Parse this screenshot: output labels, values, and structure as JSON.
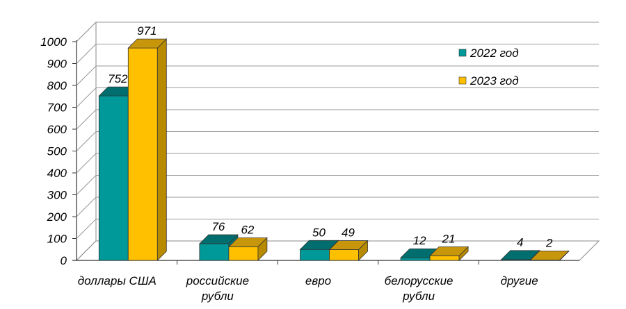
{
  "chart_data": {
    "type": "bar",
    "title": "",
    "xlabel": "",
    "ylabel": "",
    "ylim": [
      0,
      1000
    ],
    "yticks": [
      0,
      100,
      200,
      300,
      400,
      500,
      600,
      700,
      800,
      900,
      1000
    ],
    "categories": [
      [
        "доллары США"
      ],
      [
        "российские",
        "рубли"
      ],
      [
        "евро"
      ],
      [
        "белорусские",
        "рубли"
      ],
      [
        "другие"
      ]
    ],
    "series": [
      {
        "name": "2022 год",
        "values": [
          752,
          76,
          50,
          12,
          4
        ],
        "color": "#009999",
        "top_color": "#006e6e",
        "side_color": "#007a7a"
      },
      {
        "name": "2023 год",
        "values": [
          971,
          62,
          49,
          21,
          2
        ],
        "color": "#ffc000",
        "top_color": "#c8960a",
        "side_color": "#b88a00"
      }
    ],
    "legend_position": "top-right",
    "grid": true,
    "style": "3d-column"
  }
}
